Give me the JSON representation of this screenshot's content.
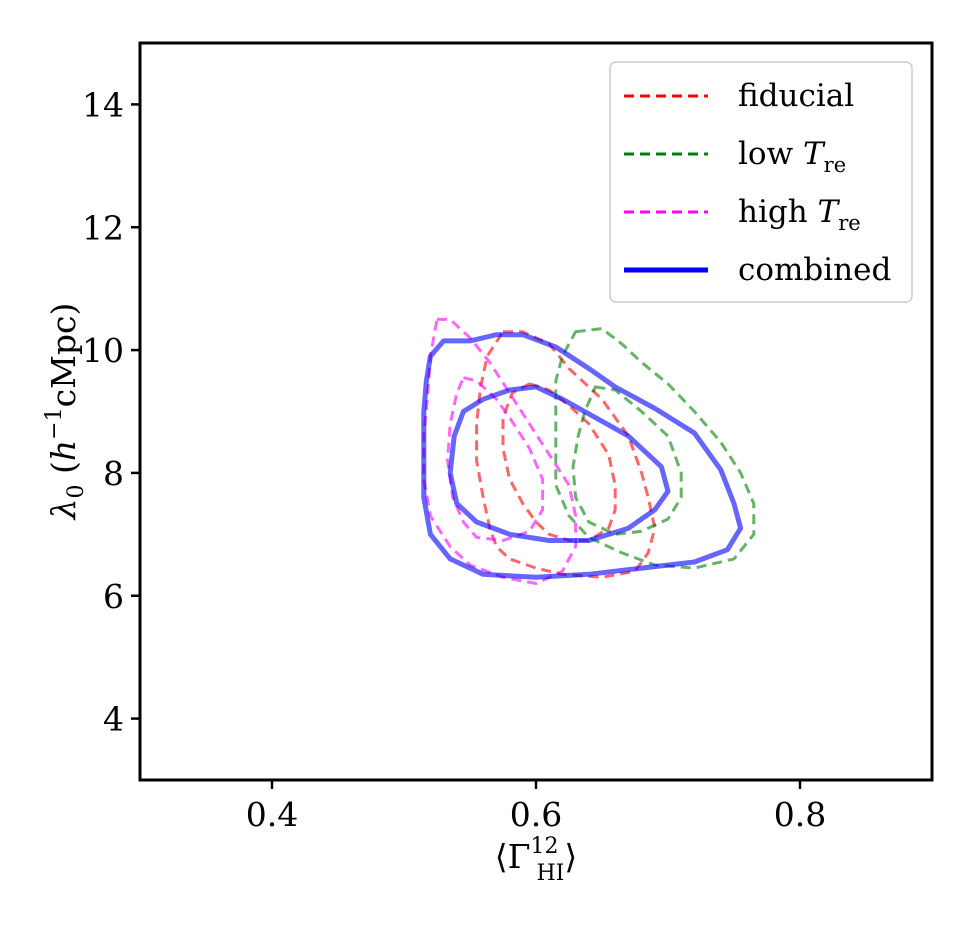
{
  "chart_data": {
    "type": "contour",
    "title": "",
    "xlabel": "⟨Γ",
    "xlabel_sup": "12",
    "xlabel_sub": "HI",
    "xlabel_close": "⟩",
    "ylabel": "λ",
    "ylabel_sub": "0",
    "ylabel_rest_open": " (",
    "ylabel_h": "h",
    "ylabel_exp": "−1",
    "ylabel_unit": "cMpc)",
    "xlim": [
      0.3,
      0.9
    ],
    "ylim": [
      3,
      15
    ],
    "xticks": [
      0.4,
      0.6,
      0.8
    ],
    "xtick_labels": [
      "0.4",
      "0.6",
      "0.8"
    ],
    "yticks": [
      4,
      6,
      8,
      10,
      12,
      14
    ],
    "ytick_labels": [
      "4",
      "6",
      "8",
      "10",
      "12",
      "14"
    ],
    "legend_position": "top-right",
    "series": [
      {
        "name": "fiducial",
        "name_main": "fiducial",
        "name_italic": "",
        "name_sub": "",
        "color": "#ff0000",
        "style": "dashed",
        "contours": [
          [
            [
              0.575,
              10.3
            ],
            [
              0.59,
              10.3
            ],
            [
              0.61,
              10.1
            ],
            [
              0.625,
              9.7
            ],
            [
              0.65,
              9.2
            ],
            [
              0.67,
              8.6
            ],
            [
              0.68,
              8.0
            ],
            [
              0.685,
              7.6
            ],
            [
              0.69,
              7.1
            ],
            [
              0.685,
              6.7
            ],
            [
              0.675,
              6.4
            ],
            [
              0.65,
              6.3
            ],
            [
              0.62,
              6.35
            ],
            [
              0.6,
              6.45
            ],
            [
              0.58,
              6.6
            ],
            [
              0.57,
              6.8
            ],
            [
              0.565,
              7.1
            ],
            [
              0.56,
              7.6
            ],
            [
              0.555,
              8.2
            ],
            [
              0.555,
              8.8
            ],
            [
              0.558,
              9.4
            ],
            [
              0.563,
              9.9
            ],
            [
              0.575,
              10.3
            ]
          ],
          [
            [
              0.595,
              9.45
            ],
            [
              0.61,
              9.35
            ],
            [
              0.625,
              9.1
            ],
            [
              0.64,
              8.8
            ],
            [
              0.655,
              8.3
            ],
            [
              0.66,
              7.8
            ],
            [
              0.66,
              7.4
            ],
            [
              0.655,
              7.1
            ],
            [
              0.64,
              6.9
            ],
            [
              0.625,
              6.9
            ],
            [
              0.61,
              7.0
            ],
            [
              0.6,
              7.2
            ],
            [
              0.59,
              7.5
            ],
            [
              0.58,
              7.9
            ],
            [
              0.575,
              8.4
            ],
            [
              0.575,
              8.9
            ],
            [
              0.582,
              9.3
            ],
            [
              0.595,
              9.45
            ]
          ]
        ]
      },
      {
        "name": "low T_re",
        "name_main": "low ",
        "name_italic": "T",
        "name_sub": "re",
        "color": "#008000",
        "style": "dashed",
        "contours": [
          [
            [
              0.63,
              10.3
            ],
            [
              0.65,
              10.35
            ],
            [
              0.665,
              10.1
            ],
            [
              0.68,
              9.8
            ],
            [
              0.7,
              9.45
            ],
            [
              0.72,
              9.0
            ],
            [
              0.74,
              8.5
            ],
            [
              0.755,
              8.0
            ],
            [
              0.765,
              7.5
            ],
            [
              0.765,
              7.0
            ],
            [
              0.75,
              6.6
            ],
            [
              0.72,
              6.45
            ],
            [
              0.69,
              6.5
            ],
            [
              0.665,
              6.7
            ],
            [
              0.64,
              6.95
            ],
            [
              0.625,
              7.3
            ],
            [
              0.615,
              7.8
            ],
            [
              0.615,
              8.3
            ],
            [
              0.615,
              8.9
            ],
            [
              0.615,
              9.5
            ],
            [
              0.62,
              9.9
            ],
            [
              0.63,
              10.3
            ]
          ],
          [
            [
              0.645,
              9.4
            ],
            [
              0.66,
              9.35
            ],
            [
              0.68,
              9.0
            ],
            [
              0.7,
              8.6
            ],
            [
              0.71,
              8.0
            ],
            [
              0.71,
              7.6
            ],
            [
              0.7,
              7.25
            ],
            [
              0.68,
              7.05
            ],
            [
              0.66,
              7.0
            ],
            [
              0.64,
              7.2
            ],
            [
              0.63,
              7.6
            ],
            [
              0.628,
              8.1
            ],
            [
              0.632,
              8.6
            ],
            [
              0.637,
              9.0
            ],
            [
              0.645,
              9.4
            ]
          ]
        ]
      },
      {
        "name": "high T_re",
        "name_main": "high ",
        "name_italic": "T",
        "name_sub": "re",
        "color": "#ff00ff",
        "style": "dashed",
        "contours": [
          [
            [
              0.525,
              10.5
            ],
            [
              0.535,
              10.5
            ],
            [
              0.55,
              10.2
            ],
            [
              0.565,
              9.8
            ],
            [
              0.58,
              9.3
            ],
            [
              0.595,
              8.8
            ],
            [
              0.61,
              8.3
            ],
            [
              0.625,
              7.8
            ],
            [
              0.63,
              7.3
            ],
            [
              0.63,
              6.8
            ],
            [
              0.62,
              6.4
            ],
            [
              0.6,
              6.2
            ],
            [
              0.575,
              6.3
            ],
            [
              0.55,
              6.5
            ],
            [
              0.535,
              6.8
            ],
            [
              0.52,
              7.3
            ],
            [
              0.515,
              7.9
            ],
            [
              0.515,
              8.6
            ],
            [
              0.518,
              9.3
            ],
            [
              0.52,
              9.9
            ],
            [
              0.525,
              10.5
            ]
          ],
          [
            [
              0.545,
              9.55
            ],
            [
              0.555,
              9.5
            ],
            [
              0.57,
              9.2
            ],
            [
              0.58,
              8.9
            ],
            [
              0.595,
              8.4
            ],
            [
              0.605,
              7.9
            ],
            [
              0.605,
              7.4
            ],
            [
              0.595,
              7.05
            ],
            [
              0.575,
              6.9
            ],
            [
              0.555,
              6.95
            ],
            [
              0.545,
              7.2
            ],
            [
              0.537,
              7.6
            ],
            [
              0.533,
              8.2
            ],
            [
              0.535,
              8.8
            ],
            [
              0.54,
              9.3
            ],
            [
              0.545,
              9.55
            ]
          ]
        ]
      },
      {
        "name": "combined",
        "name_main": "combined",
        "name_italic": "",
        "name_sub": "",
        "color": "#0000ff",
        "style": "solid",
        "contours": [
          [
            [
              0.52,
              9.9
            ],
            [
              0.53,
              10.15
            ],
            [
              0.55,
              10.15
            ],
            [
              0.57,
              10.25
            ],
            [
              0.59,
              10.25
            ],
            [
              0.615,
              10.05
            ],
            [
              0.64,
              9.7
            ],
            [
              0.66,
              9.4
            ],
            [
              0.69,
              9.05
            ],
            [
              0.72,
              8.65
            ],
            [
              0.74,
              8.05
            ],
            [
              0.75,
              7.5
            ],
            [
              0.755,
              7.1
            ],
            [
              0.745,
              6.75
            ],
            [
              0.72,
              6.55
            ],
            [
              0.68,
              6.45
            ],
            [
              0.64,
              6.35
            ],
            [
              0.6,
              6.3
            ],
            [
              0.56,
              6.35
            ],
            [
              0.535,
              6.6
            ],
            [
              0.52,
              7.0
            ],
            [
              0.515,
              7.6
            ],
            [
              0.515,
              8.3
            ],
            [
              0.515,
              9.0
            ],
            [
              0.517,
              9.5
            ],
            [
              0.52,
              9.9
            ]
          ],
          [
            [
              0.56,
              9.2
            ],
            [
              0.58,
              9.35
            ],
            [
              0.6,
              9.4
            ],
            [
              0.62,
              9.2
            ],
            [
              0.645,
              8.9
            ],
            [
              0.67,
              8.6
            ],
            [
              0.695,
              8.1
            ],
            [
              0.7,
              7.7
            ],
            [
              0.69,
              7.4
            ],
            [
              0.67,
              7.1
            ],
            [
              0.64,
              6.9
            ],
            [
              0.61,
              6.9
            ],
            [
              0.58,
              7.0
            ],
            [
              0.555,
              7.2
            ],
            [
              0.54,
              7.5
            ],
            [
              0.535,
              8.0
            ],
            [
              0.538,
              8.6
            ],
            [
              0.545,
              9.0
            ],
            [
              0.56,
              9.2
            ]
          ]
        ]
      }
    ]
  }
}
